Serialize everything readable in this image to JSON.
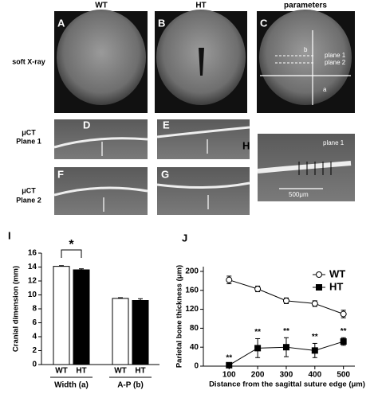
{
  "panels": {
    "headings": [
      "WT",
      "HT",
      "parameters"
    ],
    "letters": [
      "A",
      "B",
      "C",
      "D",
      "E",
      "F",
      "G",
      "H"
    ],
    "row_labels": [
      "soft X-ray",
      "μCT",
      "Plane  1",
      "μCT",
      "Plane  2"
    ],
    "c_labels": [
      "b",
      "plane 1",
      "plane 2",
      "a"
    ],
    "h_labels": [
      "plane 1",
      "500μm"
    ]
  },
  "chart_data": [
    {
      "type": "bar",
      "panel": "I",
      "ylabel": "Cranial dimension (mm)",
      "categories": [
        "Width (a)",
        "A-P (b)"
      ],
      "series": [
        {
          "name": "WT",
          "color": "#ffffff",
          "values": [
            14.1,
            9.5
          ],
          "errors": [
            0.1,
            0.1
          ]
        },
        {
          "name": "HT",
          "color": "#000000",
          "values": [
            13.6,
            9.2
          ],
          "errors": [
            0.15,
            0.25
          ]
        }
      ],
      "ylim": [
        0,
        16
      ],
      "yticks": [
        0,
        2,
        4,
        6,
        8,
        10,
        12,
        14,
        16
      ],
      "significance": "*"
    },
    {
      "type": "line",
      "panel": "J",
      "ylabel": "Parietal bone  thickness (μm)",
      "xlabel": "Distance from the sagittal suture edge (μm)",
      "x": [
        100,
        200,
        300,
        400,
        500
      ],
      "series": [
        {
          "name": "WT",
          "color": "#ffffff",
          "marker": "circle",
          "values": [
            182,
            163,
            138,
            132,
            110
          ],
          "errors": [
            8,
            6,
            6,
            6,
            8
          ]
        },
        {
          "name": "HT",
          "color": "#000000",
          "marker": "square",
          "values": [
            2,
            38,
            40,
            33,
            52
          ],
          "errors": [
            2,
            20,
            20,
            15,
            8
          ],
          "annotations": [
            "**",
            "**",
            "**",
            "**",
            "**"
          ]
        }
      ],
      "xlim": [
        10,
        540
      ],
      "xticks": [
        100,
        200,
        300,
        400,
        500
      ],
      "ylim": [
        0,
        210
      ],
      "yticks": [
        0,
        40,
        80,
        120,
        160,
        200
      ],
      "legend": "top-right"
    }
  ]
}
